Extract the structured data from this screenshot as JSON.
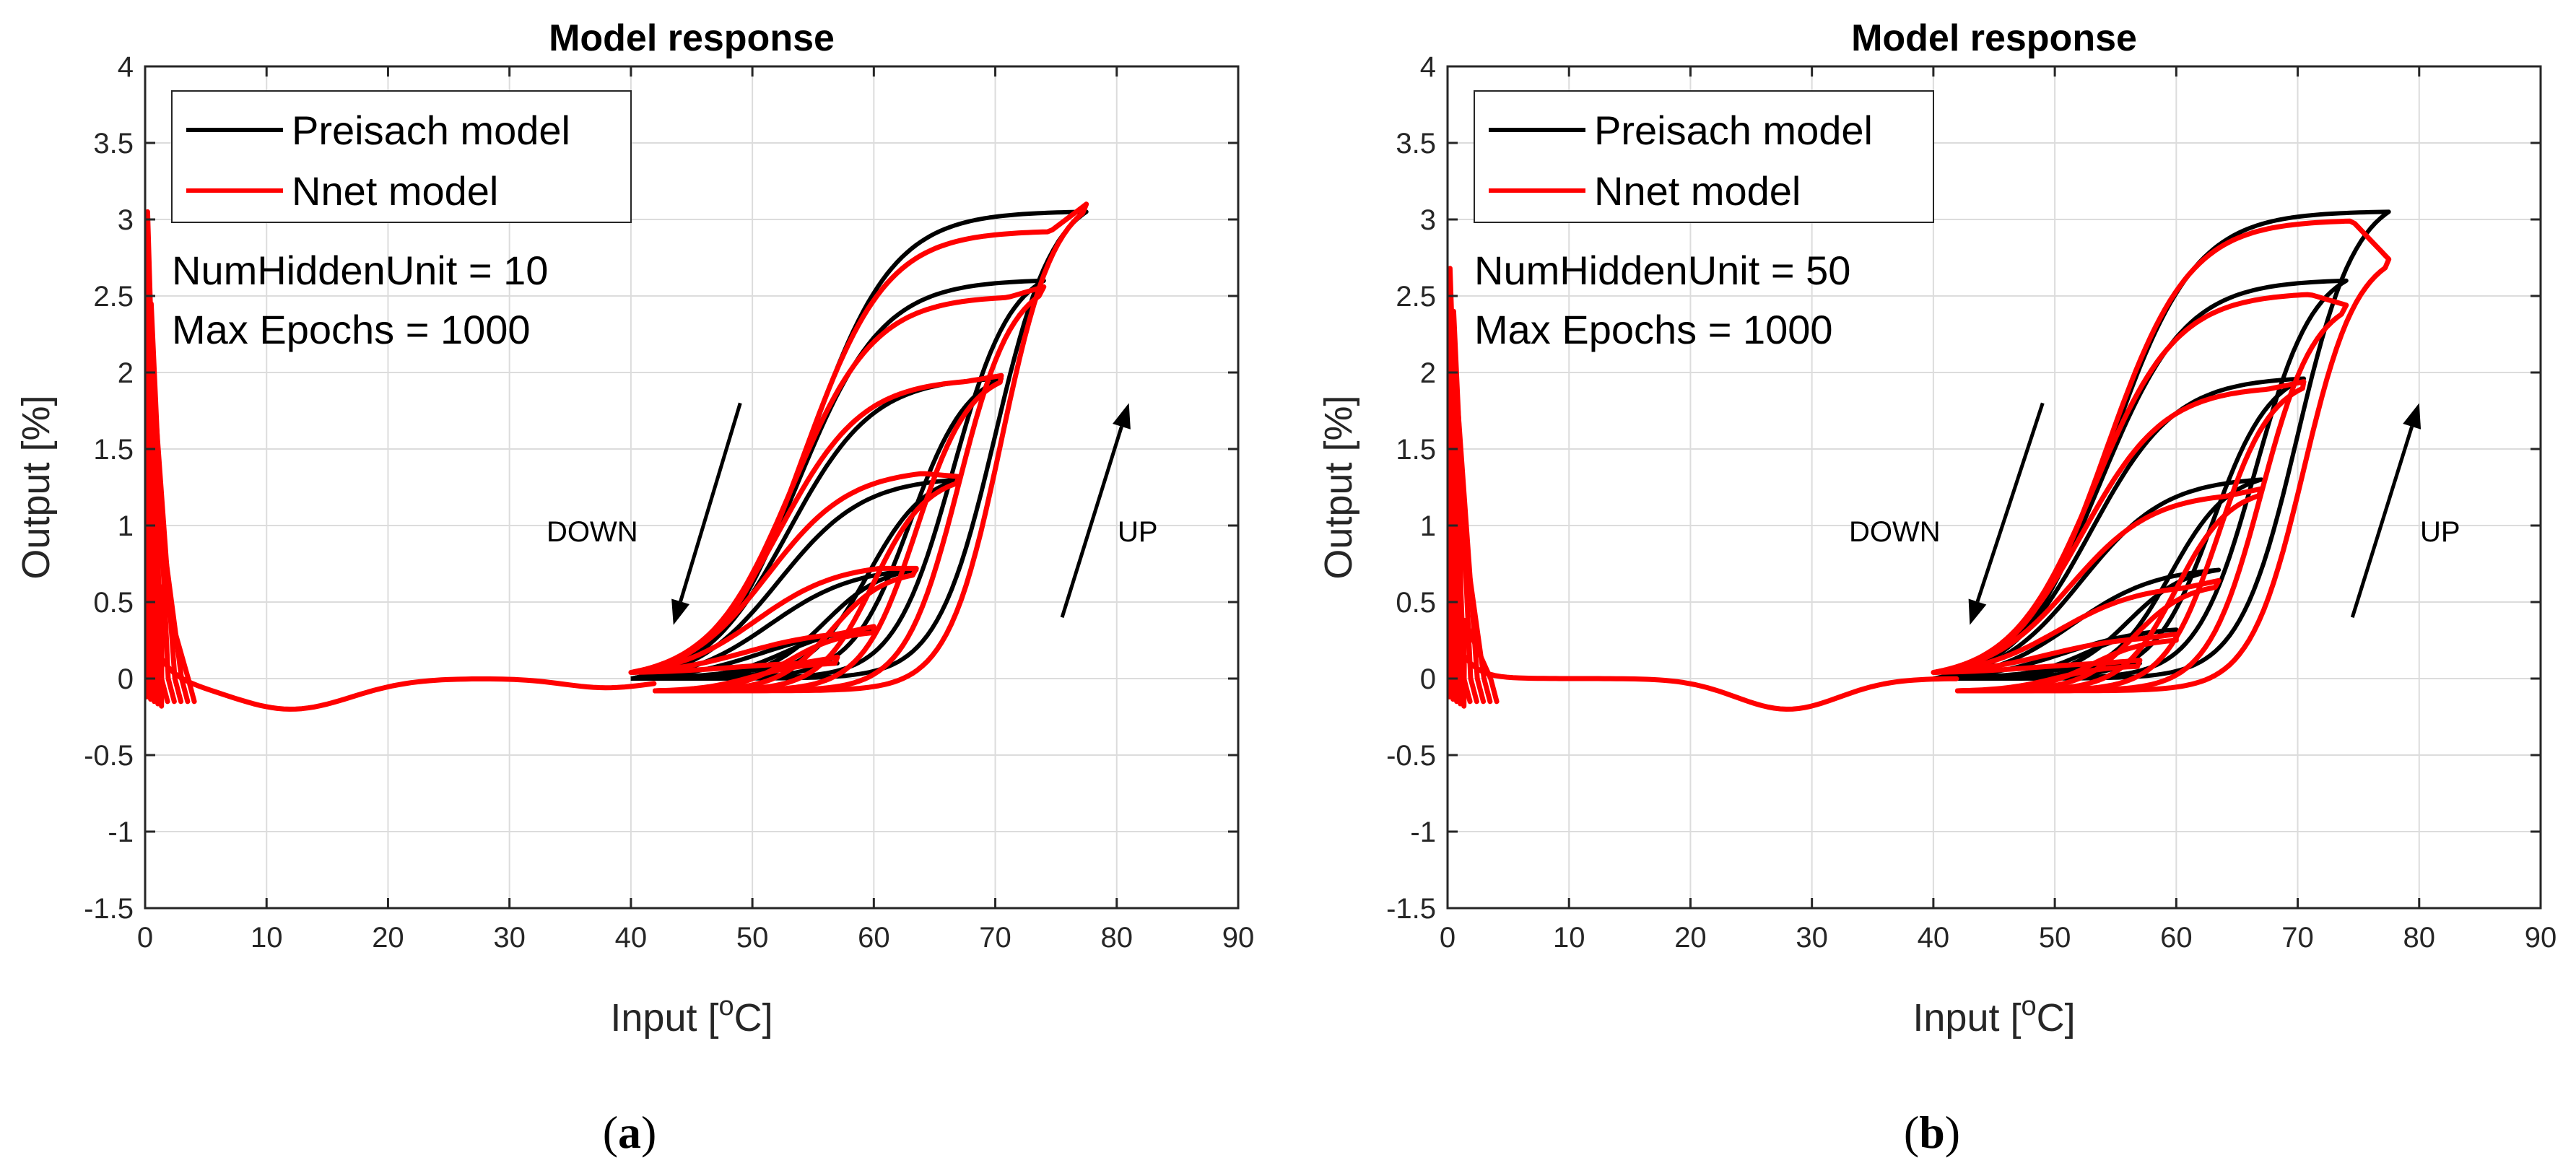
{
  "chart_data": [
    {
      "id": "a",
      "type": "line",
      "title": "Model response",
      "xlabel": "Input [",
      "xlabel_sup": "o",
      "xlabel_suffix": "C]",
      "ylabel": "Output [%]",
      "xlim": [
        0,
        90
      ],
      "ylim": [
        -1.5,
        4
      ],
      "xticks": [
        0,
        10,
        20,
        30,
        40,
        50,
        60,
        70,
        80,
        90
      ],
      "yticks": [
        -1.5,
        -1,
        -0.5,
        0,
        0.5,
        1,
        1.5,
        2,
        2.5,
        3,
        3.5,
        4
      ],
      "xtick_labels": [
        "0",
        "10",
        "20",
        "30",
        "40",
        "50",
        "60",
        "70",
        "80",
        "90"
      ],
      "ytick_labels": [
        "-1.5",
        "-1",
        "-0.5",
        "0",
        "0.5",
        "1",
        "1.5",
        "2",
        "2.5",
        "3",
        "3.5",
        "4"
      ],
      "grid": true,
      "legend": {
        "position": "top-left",
        "entries": [
          {
            "label": "Preisach model",
            "color": "#000000"
          },
          {
            "label": "Nnet model",
            "color": "#ff0000"
          }
        ]
      },
      "annotations": [
        {
          "text": "NumHiddenUnit = 10"
        },
        {
          "text": "Max Epochs = 1000"
        }
      ],
      "arrows": [
        {
          "label": "DOWN",
          "from": [
            49,
            1.8
          ],
          "to": [
            43.5,
            0.35
          ]
        },
        {
          "label": "UP",
          "from": [
            75.5,
            0.4
          ],
          "to": [
            81,
            1.8
          ]
        }
      ],
      "caption": {
        "letter": "a"
      },
      "series": [
        {
          "name": "Preisach model",
          "color": "#000000",
          "peaks": [
            {
              "xmax": 77.5,
              "ymax": 3.05
            },
            {
              "xmax": 74.0,
              "ymax": 2.6
            },
            {
              "xmax": 70.5,
              "ymax": 1.96
            },
            {
              "xmax": 67.0,
              "ymax": 1.3
            },
            {
              "xmax": 63.5,
              "ymax": 0.71
            },
            {
              "xmax": 60.0,
              "ymax": 0.32
            },
            {
              "xmax": 57.0,
              "ymax": 0.1
            }
          ]
        },
        {
          "name": "Nnet model",
          "color": "#ff0000",
          "peaks": [
            {
              "xmax": 77.5,
              "ymax": 3.06,
              "plateau": 2.88
            },
            {
              "xmax": 74.0,
              "ymax": 2.52,
              "plateau": 2.45
            },
            {
              "xmax": 70.5,
              "ymax": 1.94,
              "plateau": 1.9
            },
            {
              "xmax": 67.0,
              "ymax": 1.28,
              "plateau": 1.3
            },
            {
              "xmax": 63.5,
              "ymax": 0.68,
              "plateau": 0.68
            },
            {
              "xmax": 60.0,
              "ymax": 0.3,
              "plateau": 0.25
            },
            {
              "xmax": 57.0,
              "ymax": 0.1,
              "plateau": 0.06
            }
          ]
        }
      ]
    },
    {
      "id": "b",
      "type": "line",
      "title": "Model response",
      "xlabel": "Input [",
      "xlabel_sup": "o",
      "xlabel_suffix": "C]",
      "ylabel": "Output [%]",
      "xlim": [
        0,
        90
      ],
      "ylim": [
        -1.5,
        4
      ],
      "xticks": [
        0,
        10,
        20,
        30,
        40,
        50,
        60,
        70,
        80,
        90
      ],
      "yticks": [
        -1.5,
        -1,
        -0.5,
        0,
        0.5,
        1,
        1.5,
        2,
        2.5,
        3,
        3.5,
        4
      ],
      "xtick_labels": [
        "0",
        "10",
        "20",
        "30",
        "40",
        "50",
        "60",
        "70",
        "80",
        "90"
      ],
      "ytick_labels": [
        "-1.5",
        "-1",
        "-0.5",
        "0",
        "0.5",
        "1",
        "1.5",
        "2",
        "2.5",
        "3",
        "3.5",
        "4"
      ],
      "grid": true,
      "legend": {
        "position": "top-left",
        "entries": [
          {
            "label": "Preisach model",
            "color": "#000000"
          },
          {
            "label": "Nnet model",
            "color": "#ff0000"
          }
        ]
      },
      "annotations": [
        {
          "text": "NumHiddenUnit = 50"
        },
        {
          "text": "Max Epochs = 1000"
        }
      ],
      "arrows": [
        {
          "label": "DOWN",
          "from": [
            49,
            1.8
          ],
          "to": [
            43,
            0.35
          ]
        },
        {
          "label": "UP",
          "from": [
            74.5,
            0.4
          ],
          "to": [
            80,
            1.8
          ]
        }
      ],
      "caption": {
        "letter": "b"
      },
      "series": [
        {
          "name": "Preisach model",
          "color": "#000000",
          "peaks": [
            {
              "xmax": 77.5,
              "ymax": 3.05
            },
            {
              "xmax": 74.0,
              "ymax": 2.6
            },
            {
              "xmax": 70.5,
              "ymax": 1.96
            },
            {
              "xmax": 67.0,
              "ymax": 1.3
            },
            {
              "xmax": 63.5,
              "ymax": 0.71
            },
            {
              "xmax": 60.0,
              "ymax": 0.32
            },
            {
              "xmax": 57.0,
              "ymax": 0.1
            }
          ]
        },
        {
          "name": "Nnet model",
          "color": "#ff0000",
          "peaks": [
            {
              "xmax": 77.5,
              "ymax": 2.7,
              "plateau": 2.95
            },
            {
              "xmax": 74.0,
              "ymax": 2.4,
              "plateau": 2.47
            },
            {
              "xmax": 70.5,
              "ymax": 1.9,
              "plateau": 1.85
            },
            {
              "xmax": 67.0,
              "ymax": 1.2,
              "plateau": 1.15
            },
            {
              "xmax": 63.5,
              "ymax": 0.6,
              "plateau": 0.55
            },
            {
              "xmax": 60.0,
              "ymax": 0.25,
              "plateau": 0.22
            },
            {
              "xmax": 57.0,
              "ymax": 0.08,
              "plateau": 0.06
            }
          ]
        }
      ]
    }
  ]
}
